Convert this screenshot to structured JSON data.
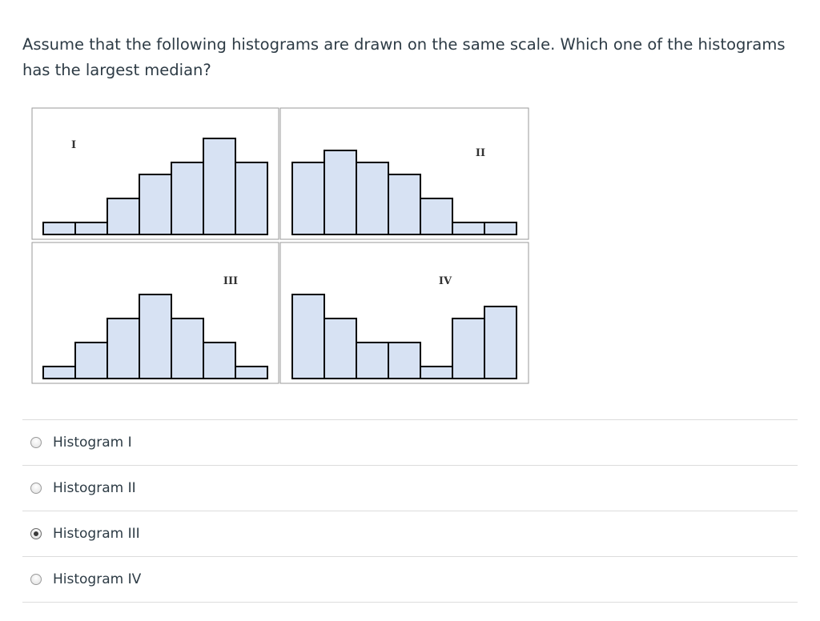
{
  "question": {
    "text": "Assume that the following histograms are drawn on the same scale. Which one of the histograms has the largest median?"
  },
  "chart_data": [
    {
      "type": "bar",
      "label": "I",
      "values": [
        1,
        1,
        3,
        5,
        6,
        8,
        6
      ],
      "bar_color": "#d7e2f3",
      "edge_color": "#000000"
    },
    {
      "type": "bar",
      "label": "II",
      "values": [
        6,
        7,
        6,
        5,
        3,
        1,
        1
      ],
      "bar_color": "#d7e2f3",
      "edge_color": "#000000"
    },
    {
      "type": "bar",
      "label": "III",
      "values": [
        1,
        3,
        5,
        7,
        5,
        3,
        1
      ],
      "bar_color": "#d7e2f3",
      "edge_color": "#000000"
    },
    {
      "type": "bar",
      "label": "IV",
      "values": [
        7,
        5,
        3,
        3,
        1,
        5,
        6
      ],
      "bar_color": "#d7e2f3",
      "edge_color": "#000000"
    }
  ],
  "answers": [
    {
      "label": "Histogram I",
      "selected": false
    },
    {
      "label": "Histogram II",
      "selected": false
    },
    {
      "label": "Histogram III",
      "selected": true
    },
    {
      "label": "Histogram IV",
      "selected": false
    }
  ]
}
